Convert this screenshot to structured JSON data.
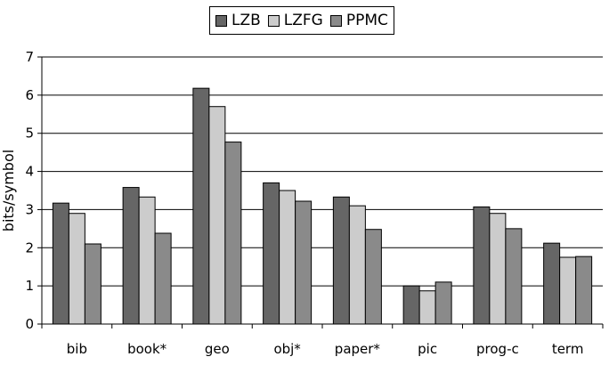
{
  "chart_data": {
    "type": "bar",
    "title": "",
    "xlabel": "",
    "ylabel": "bits/symbol",
    "ylim": [
      0,
      7
    ],
    "yticks": [
      0,
      1,
      2,
      3,
      4,
      5,
      6,
      7
    ],
    "grid": "horizontal",
    "legend_position": "top",
    "categories": [
      "bib",
      "book*",
      "geo",
      "obj*",
      "paper*",
      "pic",
      "prog-c",
      "term"
    ],
    "series": [
      {
        "name": "LZB",
        "color": "#666666",
        "values": [
          3.17,
          3.58,
          6.18,
          3.7,
          3.33,
          1.0,
          3.07,
          2.12
        ]
      },
      {
        "name": "LZFG",
        "color": "#cccccc",
        "values": [
          2.9,
          3.33,
          5.7,
          3.5,
          3.1,
          0.87,
          2.9,
          1.75
        ]
      },
      {
        "name": "PPMC",
        "color": "#8a8a8a",
        "values": [
          2.1,
          2.38,
          4.77,
          3.22,
          2.48,
          1.1,
          2.5,
          1.77
        ]
      }
    ]
  }
}
